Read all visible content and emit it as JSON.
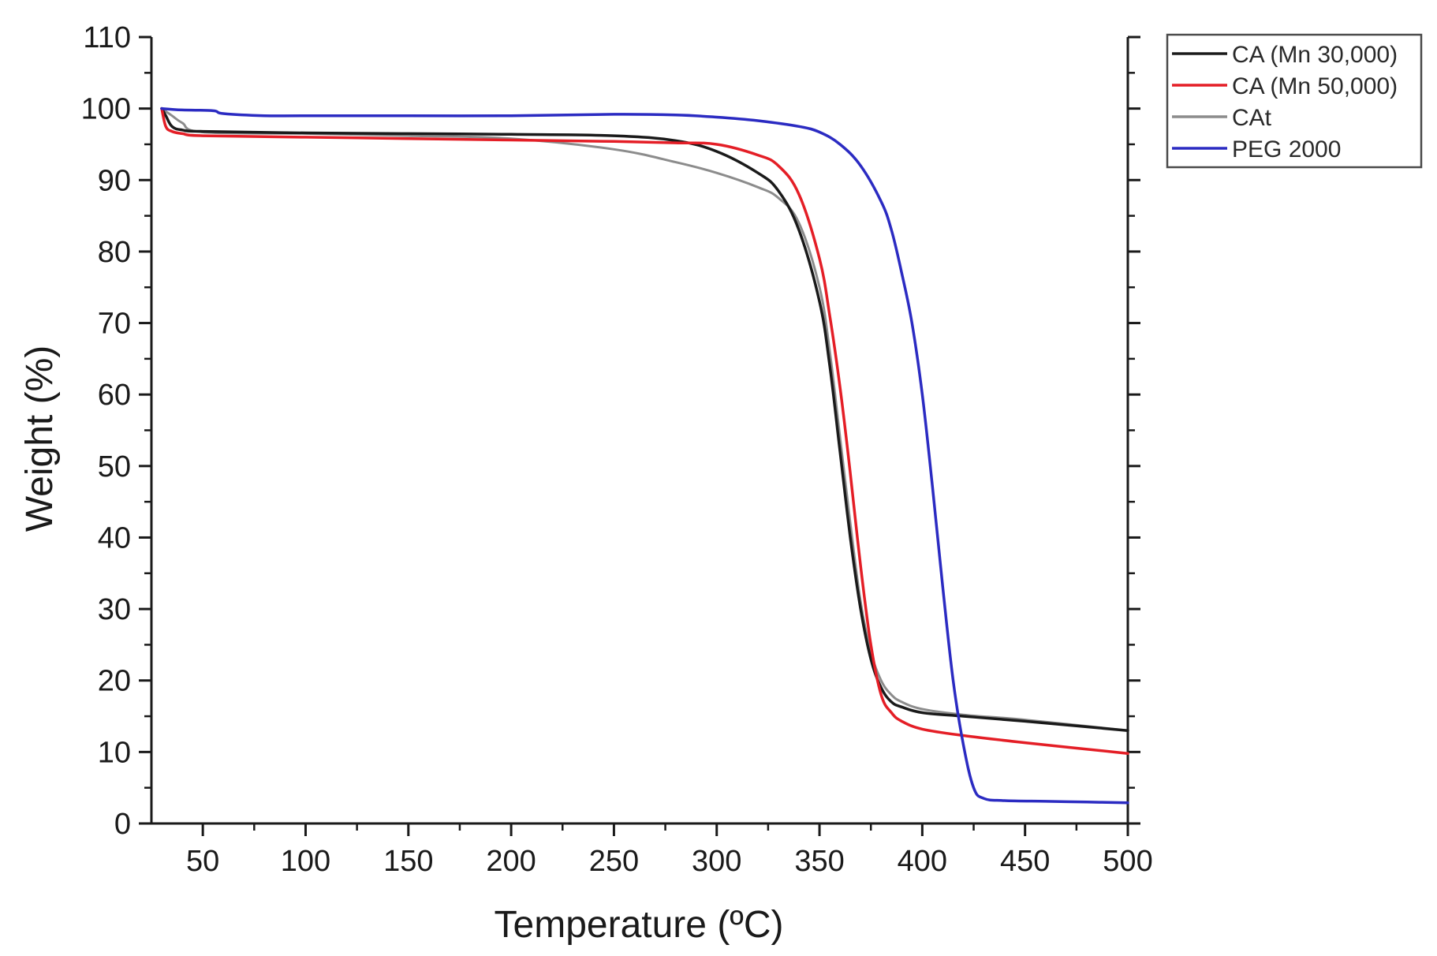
{
  "chart_data": {
    "type": "line",
    "xlabel": "Temperature (ºC)",
    "ylabel": "Weight (%)",
    "xlim": [
      25,
      500
    ],
    "ylim": [
      0,
      110
    ],
    "x_ticks": [
      50,
      100,
      150,
      200,
      250,
      300,
      350,
      400,
      450,
      500
    ],
    "y_ticks": [
      0,
      10,
      20,
      30,
      40,
      50,
      60,
      70,
      80,
      90,
      100,
      110
    ],
    "grid": false,
    "legend_position": "outside-top-right",
    "series": [
      {
        "name": "CA (Mn 30,000)",
        "color": "#1a1a1a",
        "points": [
          [
            30,
            100
          ],
          [
            32,
            99
          ],
          [
            35,
            97.5
          ],
          [
            40,
            97
          ],
          [
            50,
            96.8
          ],
          [
            100,
            96.6
          ],
          [
            150,
            96.5
          ],
          [
            200,
            96.4
          ],
          [
            250,
            96.2
          ],
          [
            280,
            95.5
          ],
          [
            300,
            94
          ],
          [
            320,
            91
          ],
          [
            330,
            88.5
          ],
          [
            340,
            83
          ],
          [
            350,
            73
          ],
          [
            355,
            64
          ],
          [
            360,
            52
          ],
          [
            365,
            40
          ],
          [
            370,
            30
          ],
          [
            375,
            23
          ],
          [
            380,
            19
          ],
          [
            385,
            17
          ],
          [
            390,
            16.3
          ],
          [
            400,
            15.5
          ],
          [
            420,
            15
          ],
          [
            450,
            14.3
          ],
          [
            500,
            13
          ]
        ]
      },
      {
        "name": "CA (Mn 50,000)",
        "color": "#e41e26",
        "points": [
          [
            30,
            100
          ],
          [
            32,
            97.5
          ],
          [
            35,
            96.8
          ],
          [
            40,
            96.5
          ],
          [
            50,
            96.2
          ],
          [
            100,
            96
          ],
          [
            150,
            95.8
          ],
          [
            200,
            95.6
          ],
          [
            250,
            95.4
          ],
          [
            280,
            95.2
          ],
          [
            300,
            95
          ],
          [
            320,
            93.5
          ],
          [
            330,
            92
          ],
          [
            340,
            88
          ],
          [
            350,
            79
          ],
          [
            355,
            71
          ],
          [
            360,
            61
          ],
          [
            365,
            49
          ],
          [
            370,
            36
          ],
          [
            375,
            25
          ],
          [
            380,
            18
          ],
          [
            385,
            15.5
          ],
          [
            390,
            14.3
          ],
          [
            400,
            13.2
          ],
          [
            420,
            12.3
          ],
          [
            450,
            11.3
          ],
          [
            500,
            9.8
          ]
        ]
      },
      {
        "name": "CAt",
        "color": "#8c8c8c",
        "points": [
          [
            30,
            100
          ],
          [
            35,
            99
          ],
          [
            40,
            98
          ],
          [
            50,
            96.7
          ],
          [
            100,
            96.5
          ],
          [
            150,
            96.2
          ],
          [
            200,
            95.8
          ],
          [
            250,
            94.3
          ],
          [
            280,
            92.5
          ],
          [
            300,
            91
          ],
          [
            320,
            89
          ],
          [
            330,
            87.5
          ],
          [
            340,
            84
          ],
          [
            350,
            75
          ],
          [
            355,
            66
          ],
          [
            360,
            54
          ],
          [
            365,
            42
          ],
          [
            370,
            31
          ],
          [
            375,
            24
          ],
          [
            380,
            20
          ],
          [
            385,
            18
          ],
          [
            390,
            17
          ],
          [
            400,
            16
          ],
          [
            420,
            15.2
          ],
          [
            450,
            14.5
          ],
          [
            500,
            13
          ]
        ]
      },
      {
        "name": "PEG 2000",
        "color": "#2b2bc2",
        "points": [
          [
            30,
            100
          ],
          [
            40,
            99.8
          ],
          [
            55,
            99.7
          ],
          [
            60,
            99.3
          ],
          [
            80,
            99
          ],
          [
            100,
            99
          ],
          [
            150,
            99
          ],
          [
            200,
            99
          ],
          [
            250,
            99.2
          ],
          [
            280,
            99.1
          ],
          [
            300,
            98.8
          ],
          [
            320,
            98.3
          ],
          [
            340,
            97.5
          ],
          [
            350,
            96.7
          ],
          [
            360,
            95
          ],
          [
            370,
            92
          ],
          [
            380,
            87
          ],
          [
            385,
            83
          ],
          [
            390,
            77
          ],
          [
            395,
            70
          ],
          [
            400,
            60
          ],
          [
            405,
            47
          ],
          [
            410,
            33
          ],
          [
            415,
            20
          ],
          [
            420,
            11
          ],
          [
            425,
            5
          ],
          [
            430,
            3.5
          ],
          [
            440,
            3.2
          ],
          [
            460,
            3.1
          ],
          [
            480,
            3
          ],
          [
            500,
            2.9
          ]
        ]
      }
    ]
  }
}
